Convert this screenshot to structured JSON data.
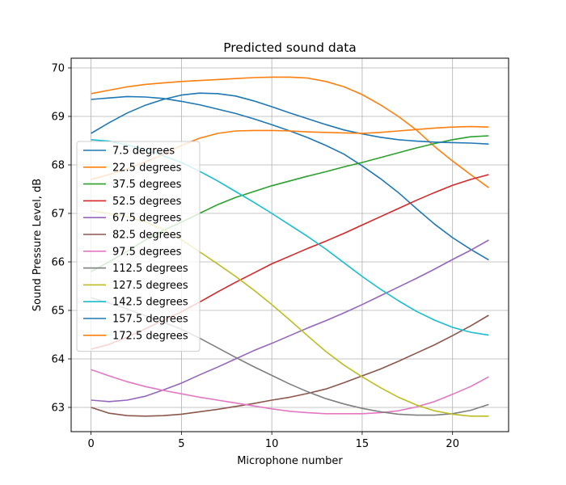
{
  "chart_data": {
    "type": "line",
    "title": "Predicted sound data",
    "xlabel": "Microphone number",
    "ylabel": "Sound Pressure Level, dB",
    "xlim": [
      -1.1,
      23.1
    ],
    "ylim": [
      62.5,
      70.2
    ],
    "xticks": [
      0,
      5,
      10,
      15,
      20
    ],
    "yticks": [
      63,
      64,
      65,
      66,
      67,
      68,
      69,
      70
    ],
    "grid": true,
    "legend_position": "left",
    "x": [
      0,
      1,
      2,
      3,
      4,
      5,
      6,
      7,
      8,
      9,
      10,
      11,
      12,
      13,
      14,
      15,
      16,
      17,
      18,
      19,
      20,
      21,
      22
    ],
    "series": [
      {
        "name": "7.5 degrees",
        "color": "#1f77b4",
        "values": [
          69.35,
          69.38,
          69.41,
          69.4,
          69.37,
          69.31,
          69.24,
          69.15,
          69.06,
          68.95,
          68.83,
          68.7,
          68.56,
          68.4,
          68.22,
          67.98,
          67.72,
          67.43,
          67.1,
          66.78,
          66.5,
          66.26,
          66.04
        ]
      },
      {
        "name": "22.5 degrees",
        "color": "#ff7f0e",
        "values": [
          69.47,
          69.54,
          69.61,
          69.66,
          69.69,
          69.72,
          69.74,
          69.76,
          69.78,
          69.8,
          69.81,
          69.81,
          69.79,
          69.72,
          69.61,
          69.45,
          69.24,
          69.0,
          68.72,
          68.38,
          68.08,
          67.8,
          67.53
        ]
      },
      {
        "name": "37.5 degrees",
        "color": "#2ca02c",
        "values": [
          65.8,
          66.0,
          66.22,
          66.45,
          66.65,
          66.82,
          67.0,
          67.18,
          67.33,
          67.45,
          67.57,
          67.67,
          67.77,
          67.86,
          67.96,
          68.05,
          68.15,
          68.25,
          68.35,
          68.44,
          68.52,
          68.58,
          68.6
        ]
      },
      {
        "name": "52.5 degrees",
        "color": "#d62728",
        "values": [
          64.2,
          64.3,
          64.45,
          64.62,
          64.8,
          64.97,
          65.17,
          65.38,
          65.58,
          65.77,
          65.96,
          66.12,
          66.28,
          66.43,
          66.59,
          66.76,
          66.93,
          67.1,
          67.27,
          67.43,
          67.58,
          67.7,
          67.8
        ]
      },
      {
        "name": "67.5 degrees",
        "color": "#9467bd",
        "values": [
          63.15,
          63.12,
          63.15,
          63.23,
          63.36,
          63.5,
          63.67,
          63.83,
          64.0,
          64.17,
          64.32,
          64.48,
          64.64,
          64.79,
          64.95,
          65.12,
          65.3,
          65.48,
          65.66,
          65.85,
          66.05,
          66.24,
          66.45
        ]
      },
      {
        "name": "82.5 degrees",
        "color": "#8c564b",
        "values": [
          63.0,
          62.88,
          62.83,
          62.82,
          62.83,
          62.86,
          62.91,
          62.96,
          63.02,
          63.08,
          63.15,
          63.21,
          63.29,
          63.38,
          63.51,
          63.65,
          63.79,
          63.95,
          64.12,
          64.29,
          64.48,
          64.68,
          64.9
        ]
      },
      {
        "name": "97.5 degrees",
        "color": "#e377c2",
        "values": [
          63.78,
          63.65,
          63.53,
          63.43,
          63.35,
          63.28,
          63.21,
          63.15,
          63.09,
          63.03,
          62.97,
          62.92,
          62.89,
          62.87,
          62.87,
          62.87,
          62.89,
          62.93,
          63.01,
          63.12,
          63.27,
          63.43,
          63.63
        ]
      },
      {
        "name": "112.5 degrees",
        "color": "#7f7f7f",
        "values": [
          65.26,
          65.15,
          65.03,
          64.89,
          64.76,
          64.61,
          64.43,
          64.23,
          64.03,
          63.84,
          63.66,
          63.48,
          63.32,
          63.18,
          63.07,
          62.98,
          62.91,
          62.86,
          62.84,
          62.84,
          62.87,
          62.94,
          63.06
        ]
      },
      {
        "name": "127.5 degrees",
        "color": "#bcbd22",
        "values": [
          67.05,
          67.0,
          66.93,
          66.82,
          66.67,
          66.46,
          66.21,
          65.96,
          65.7,
          65.42,
          65.12,
          64.8,
          64.47,
          64.15,
          63.87,
          63.63,
          63.41,
          63.21,
          63.05,
          62.93,
          62.86,
          62.82,
          62.82
        ]
      },
      {
        "name": "142.5 degrees",
        "color": "#17becf",
        "values": [
          68.52,
          68.49,
          68.41,
          68.32,
          68.19,
          68.05,
          67.87,
          67.67,
          67.45,
          67.23,
          67.0,
          66.76,
          66.52,
          66.26,
          65.98,
          65.7,
          65.44,
          65.2,
          64.98,
          64.8,
          64.65,
          64.55,
          64.49
        ]
      },
      {
        "name": "157.5 degrees",
        "color": "#1f77b4",
        "values": [
          68.65,
          68.87,
          69.07,
          69.23,
          69.35,
          69.44,
          69.48,
          69.47,
          69.42,
          69.32,
          69.2,
          69.07,
          68.95,
          68.83,
          68.72,
          68.64,
          68.57,
          68.52,
          68.49,
          68.47,
          68.46,
          68.45,
          68.43
        ]
      },
      {
        "name": "172.5 degrees",
        "color": "#ff7f0e",
        "values": [
          67.7,
          67.8,
          67.92,
          68.06,
          68.22,
          68.4,
          68.55,
          68.65,
          68.7,
          68.71,
          68.71,
          68.7,
          68.68,
          68.67,
          68.66,
          68.65,
          68.67,
          68.7,
          68.73,
          68.76,
          68.78,
          68.79,
          68.78
        ]
      }
    ]
  }
}
